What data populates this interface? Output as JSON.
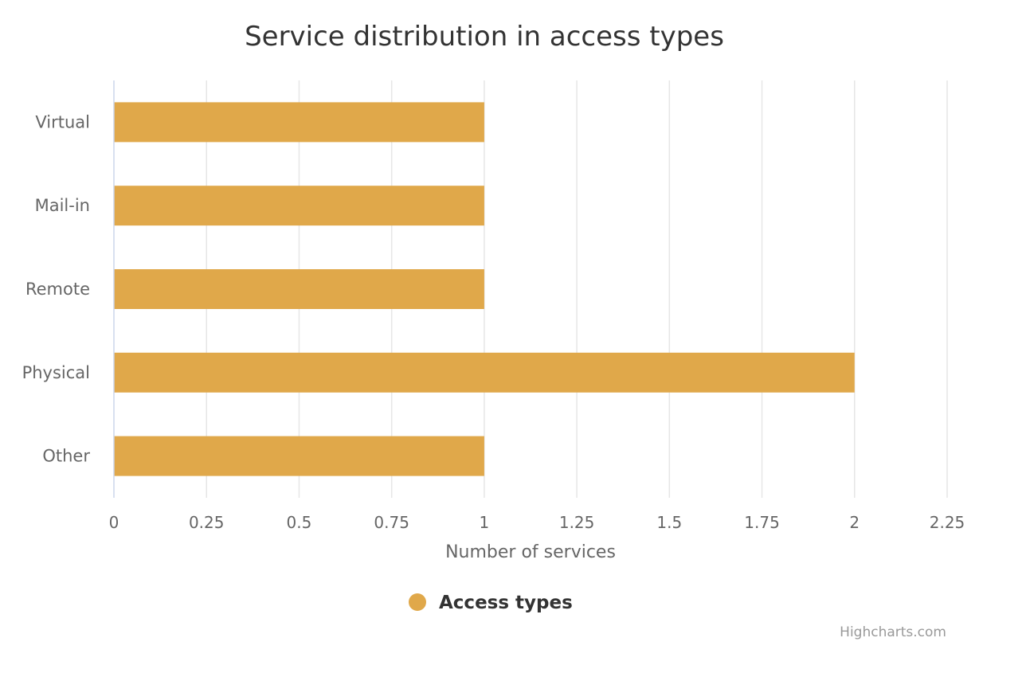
{
  "chart_data": {
    "type": "bar",
    "orientation": "horizontal",
    "title": "Service distribution in access types",
    "categories": [
      "Virtual",
      "Mail-in",
      "Remote",
      "Physical",
      "Other"
    ],
    "series": [
      {
        "name": "Access types",
        "values": [
          1,
          1,
          1,
          2,
          1
        ]
      }
    ],
    "xlabel": "Number of services",
    "ylabel": "",
    "xlim": [
      0,
      2.25
    ],
    "ticks": [
      "0",
      "0.25",
      "0.5",
      "0.75",
      "1",
      "1.25",
      "1.5",
      "1.75",
      "2",
      "2.25"
    ],
    "grid": true,
    "legend_position": "bottom-center",
    "color": "#e0a84a"
  },
  "credits": "Highcharts.com"
}
